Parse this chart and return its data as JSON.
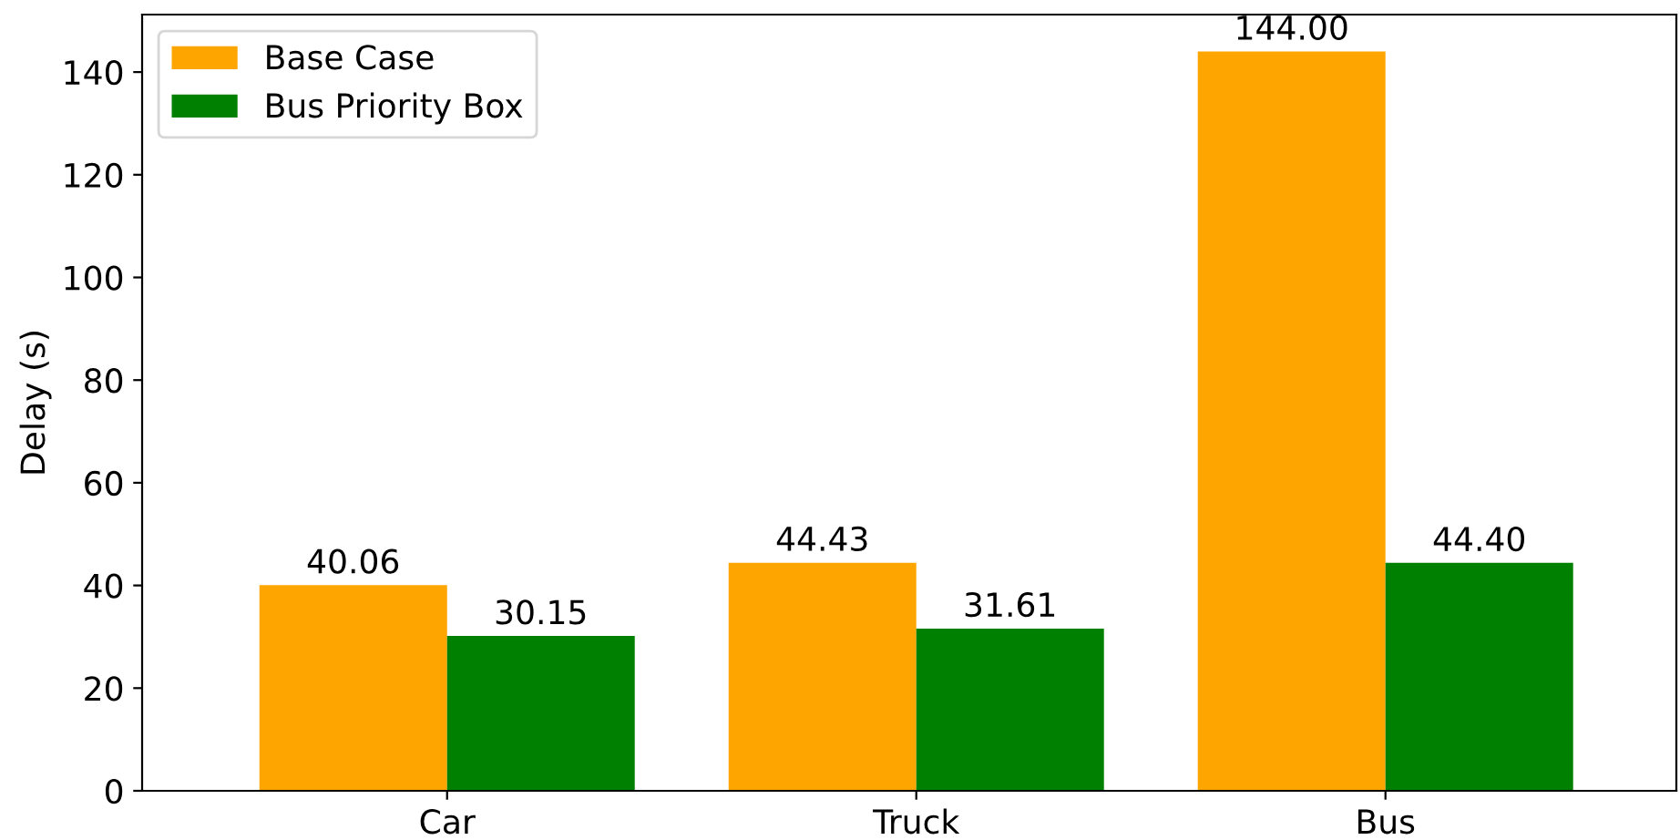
{
  "chart_data": {
    "type": "bar",
    "categories": [
      "Car",
      "Truck",
      "Bus"
    ],
    "ylabel": "Delay (s)",
    "series": [
      {
        "name": "Base Case",
        "color": "#ffa500",
        "values": [
          40.06,
          44.43,
          144.0
        ],
        "value_labels": [
          "40.06",
          "44.43",
          "144.00"
        ]
      },
      {
        "name": "Bus Priority Box",
        "color": "#008000",
        "values": [
          30.15,
          31.61,
          44.4
        ],
        "value_labels": [
          "30.15",
          "31.61",
          "44.40"
        ]
      }
    ],
    "ylim": [
      0,
      151.2
    ],
    "yticks": [
      0,
      20,
      40,
      60,
      80,
      100,
      120,
      140
    ],
    "grid": false,
    "legend": "top left"
  }
}
